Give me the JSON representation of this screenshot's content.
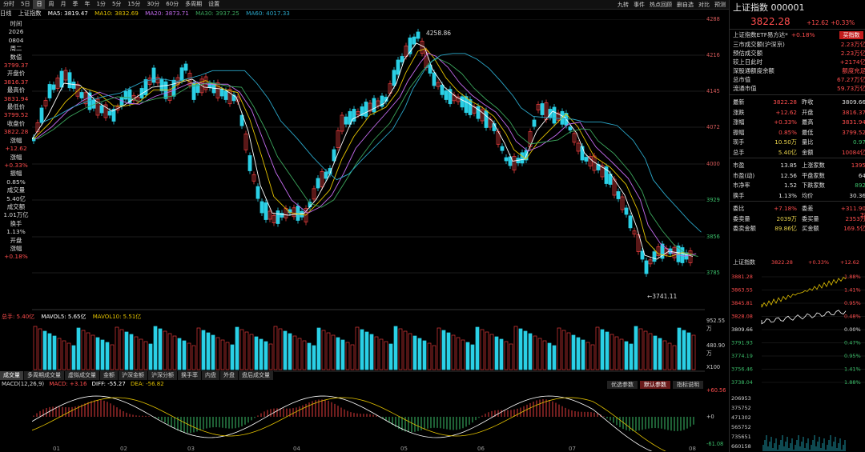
{
  "toolbar": {
    "left_items": [
      "分时",
      "5日",
      "日",
      "周",
      "月",
      "季",
      "年",
      "1分",
      "5分",
      "15分",
      "30分",
      "60分",
      "多周期",
      "设置"
    ],
    "active": "日",
    "right_items": [
      "九转",
      "事件",
      "热点回顾",
      "删自选",
      "对比",
      "预测"
    ]
  },
  "ma_legend": {
    "period": "日线",
    "name": "上证指数",
    "ma5": "MA5: 3819.47",
    "ma10": "MA10: 3832.69",
    "ma20": "MA20: 3873.71",
    "ma30": "MA30: 3937.25",
    "ma60": "MA60: 4017.33",
    "colors": {
      "ma5": "#ffffff",
      "ma10": "#e3c200",
      "ma20": "#c56cf0",
      "ma30": "#3ba55c",
      "ma60": "#2aa6c8"
    }
  },
  "left_info": [
    {
      "label": "时间",
      "value": "2026"
    },
    {
      "label": "",
      "value": "0804"
    },
    {
      "label": "",
      "value": "周二"
    },
    {
      "label": "数值",
      "value": "3799.37"
    },
    {
      "label": "开盘价",
      "value": "3816.37"
    },
    {
      "label": "最高价",
      "value": "3831.94"
    },
    {
      "label": "最低价",
      "value": "3799.52"
    },
    {
      "label": "收盘价",
      "value": "3822.28"
    },
    {
      "label": "涨幅",
      "value": "+12.62"
    },
    {
      "label": "涨幅",
      "value": "+0.33%"
    },
    {
      "label": "振幅",
      "value": "0.85%"
    },
    {
      "label": "成交量",
      "value": "5.40亿"
    },
    {
      "label": "成交额",
      "value": "1.01万亿"
    },
    {
      "label": "换手",
      "value": "1.13%"
    },
    {
      "label": "开盘",
      "value": ""
    },
    {
      "label": "涨幅",
      "value": "+0.18%"
    }
  ],
  "price_axis": [
    "4288",
    "4216",
    "4145",
    "4072",
    "4000",
    "3929",
    "3856",
    "3785"
  ],
  "annotations": {
    "high": "4258.86",
    "low": "3741.11"
  },
  "volume_panel": {
    "header": "总手: 5.40亿",
    "mavol5": "MAVOL5: 5.65亿",
    "mavol10": "MAVOL10: 5.51亿",
    "axis": [
      "952.55万",
      "480.90万",
      "X100"
    ]
  },
  "sub_tabs": [
    "成交量",
    "多周期成交量",
    "虚拟成交量",
    "金额",
    "沪深金额",
    "沪深分额",
    "换手率",
    "内盘",
    "外盘",
    "盘后成交量"
  ],
  "macd": {
    "header": "MACD(12,26,9)",
    "macd": "MACD: +3.16",
    "diff": "DIFF: -55.27",
    "dea": "DEA: -56.82",
    "axis": [
      "+60.56",
      "+0",
      "-61.08"
    ],
    "buttons": [
      "优选参数",
      "默认参数",
      "指标说明"
    ]
  },
  "dates": [
    "01",
    "02",
    "03",
    "04",
    "05",
    "06",
    "07",
    "08"
  ],
  "right_panel": {
    "title": "上证指数 000001",
    "price": "3822.28",
    "change": "+12.62 +0.33%",
    "etf": "上证指数ETF易方达*",
    "etf_change": "+0.18%",
    "buy_button": "买指数",
    "info_rows": [
      {
        "k": "三市成交额(沪深京)",
        "v": "2.23万亿"
      },
      {
        "k": "预估成交额",
        "v": "2.23万亿"
      },
      {
        "k": "较上日此时",
        "v": "+2174亿"
      },
      {
        "k": "深股通额度余额",
        "v": "额度充足"
      },
      {
        "k": "总市值",
        "v": "67.27万亿"
      },
      {
        "k": "流通市值",
        "v": "59.73万亿"
      }
    ],
    "quote_rows": [
      [
        "最新",
        "3822.28",
        "昨收",
        "3809.66"
      ],
      [
        "涨跌",
        "+12.62",
        "开盘",
        "3816.37"
      ],
      [
        "涨幅",
        "+0.33%",
        "最高",
        "3831.94"
      ],
      [
        "振幅",
        "0.85%",
        "最低",
        "3799.52"
      ],
      [
        "现手",
        "10.50万",
        "量比",
        "0.97"
      ],
      [
        "总手",
        "5.40亿",
        "金额",
        "10084亿"
      ],
      [
        "市盈",
        "13.85",
        "上涨家数",
        "1395"
      ],
      [
        "市盈(动)",
        "12.56",
        "平盘家数",
        "64"
      ],
      [
        "市净率",
        "1.52",
        "下跌家数",
        "892"
      ],
      [
        "换手",
        "1.13%",
        "均价",
        "30.36"
      ],
      [
        "委比",
        "+7.18%",
        "委差",
        "+311.90万"
      ],
      [
        "委卖量",
        "2039万",
        "委买量",
        "2353万"
      ],
      [
        "委卖金额",
        "89.86亿",
        "买金额",
        "169.5亿"
      ]
    ],
    "mini_chart": {
      "name": "上证指数",
      "price": "3822.28",
      "pct": "+0.33%",
      "chg": "+12.62",
      "left_axis": [
        "3881.28",
        "3863.55",
        "3845.81",
        "3828.08",
        "3809.66",
        "3791.93",
        "3774.19",
        "3756.46",
        "3738.04"
      ],
      "right_axis": [
        "1.88%",
        "1.41%",
        "0.95%",
        "0.48%",
        "0.00%",
        "0.47%",
        "0.95%",
        "1.41%",
        "1.88%"
      ],
      "vol_axis": [
        "206953",
        "375752",
        "471302",
        "565752",
        "735651",
        "660158"
      ]
    }
  }
}
